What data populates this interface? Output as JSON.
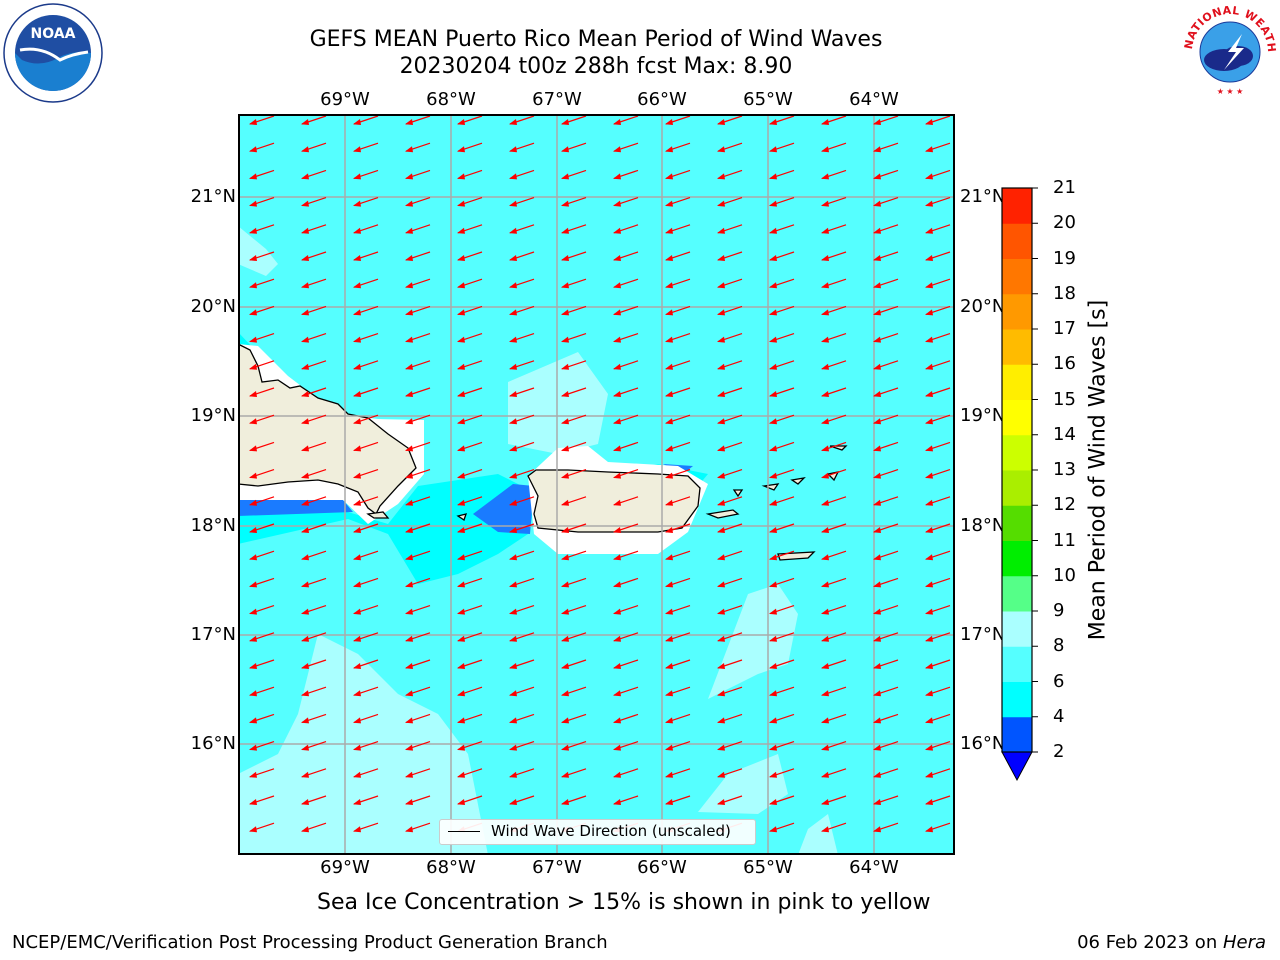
{
  "title_line1": "GEFS MEAN Puerto Rico Mean Period of Wind Waves",
  "title_line2": "20230204 t00z 288h fcst   Max: 8.90",
  "subtitle": "Sea Ice Concentration > 15% is shown in pink to yellow",
  "footer_left": "NCEP/EMC/Verification Post Processing Product Generation Branch",
  "footer_right_date": "06 Feb 2023 on ",
  "footer_right_host": "Hera",
  "legend_label": "Wind Wave Direction (unscaled)",
  "map": {
    "lon_range": [
      -70.0,
      -63.25
    ],
    "lat_range": [
      15.0,
      21.75
    ],
    "lon_ticks": [
      -69,
      -68,
      -67,
      -66,
      -65,
      -64
    ],
    "lat_ticks": [
      16,
      17,
      18,
      19,
      20,
      21
    ],
    "lon_tick_labels": [
      "69°W",
      "68°W",
      "67°W",
      "66°W",
      "65°W",
      "64°W"
    ],
    "lat_tick_labels": [
      "16°N",
      "17°N",
      "18°N",
      "19°N",
      "20°N",
      "21°N"
    ],
    "grid": true,
    "ocean_color": "#55ffff",
    "land_color": "#f0eedc",
    "arrow_color": "#ff0000",
    "arrow_direction": "toward west-southwest",
    "light_period_color": "#aaffff",
    "short_period_color": "#00ffff",
    "shortest_period_color": "#1a7bff"
  },
  "colorbar": {
    "label": "Mean Period of Wind Waves [s]",
    "ticks": [
      2,
      4,
      6,
      8,
      9,
      10,
      11,
      12,
      13,
      14,
      15,
      16,
      17,
      18,
      19,
      20,
      21
    ],
    "colors": [
      "#0055ff",
      "#00ffff",
      "#55ffff",
      "#aaffff",
      "#55ff88",
      "#00ee00",
      "#55dd00",
      "#aaee00",
      "#ccff00",
      "#ffff00",
      "#ffee00",
      "#ffbb00",
      "#ff9900",
      "#ff7700",
      "#ff5500",
      "#ff2200"
    ],
    "below_color": "#0000ff",
    "extend": "min"
  },
  "logos": {
    "left": "NOAA",
    "left_ring": "NATIONAL OCEANIC AND ATMOSPHERIC ADMINISTRATION · U.S. DEPARTMENT OF COMMERCE",
    "right_ring": "NATIONAL WEATHER SERVICE"
  }
}
